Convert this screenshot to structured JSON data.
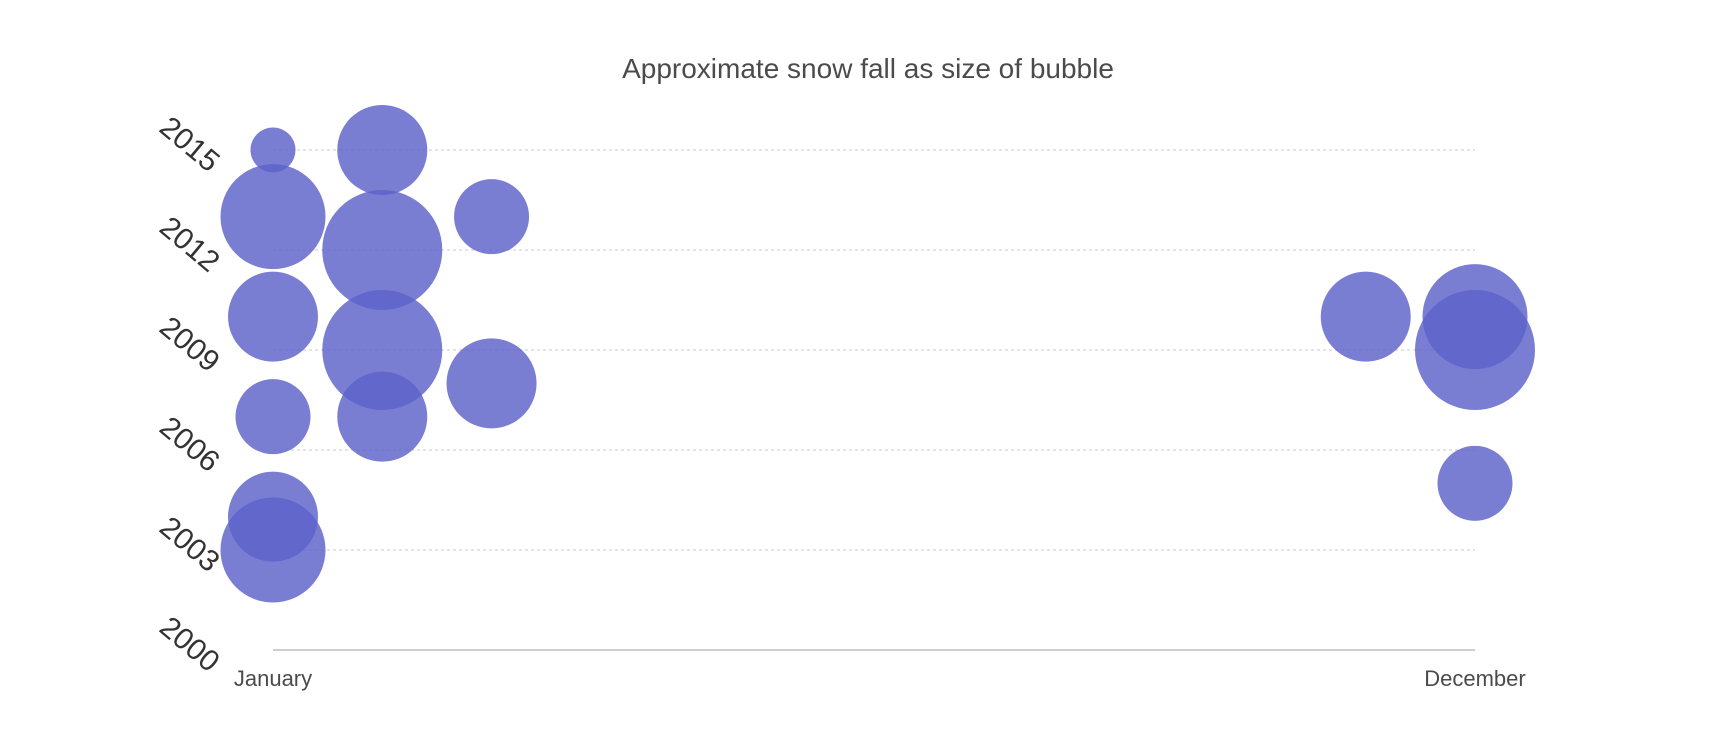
{
  "chart_data": {
    "type": "scatter",
    "title": "Approximate snow fall as size of bubble",
    "xlabel": "",
    "ylabel": "",
    "x_categories": [
      "January",
      "December"
    ],
    "x_tick_labels": [
      "January",
      "December"
    ],
    "x_range": [
      1,
      12
    ],
    "y_ticks": [
      2000,
      2003,
      2006,
      2009,
      2012,
      2015
    ],
    "y_tick_labels": [
      "2000",
      "2003",
      "2006",
      "2009",
      "2012",
      "2015"
    ],
    "ylim": [
      2000,
      2015
    ],
    "grid": true,
    "legend": "none",
    "series": [
      {
        "color": "#5b62c9",
        "points": [
          {
            "x": 1,
            "y": 2015,
            "size": 3
          },
          {
            "x": 2,
            "y": 2015,
            "size": 6
          },
          {
            "x": 1,
            "y": 2013,
            "size": 7
          },
          {
            "x": 2,
            "y": 2012,
            "size": 8
          },
          {
            "x": 3,
            "y": 2013,
            "size": 5
          },
          {
            "x": 1,
            "y": 2010,
            "size": 6
          },
          {
            "x": 2,
            "y": 2009,
            "size": 8
          },
          {
            "x": 3,
            "y": 2008,
            "size": 6
          },
          {
            "x": 1,
            "y": 2007,
            "size": 5
          },
          {
            "x": 2,
            "y": 2007,
            "size": 6
          },
          {
            "x": 1,
            "y": 2004,
            "size": 6
          },
          {
            "x": 1,
            "y": 2003,
            "size": 7
          },
          {
            "x": 11,
            "y": 2010,
            "size": 6
          },
          {
            "x": 12,
            "y": 2010,
            "size": 7
          },
          {
            "x": 12,
            "y": 2009,
            "size": 8
          },
          {
            "x": 12,
            "y": 2005,
            "size": 5
          }
        ]
      }
    ]
  }
}
